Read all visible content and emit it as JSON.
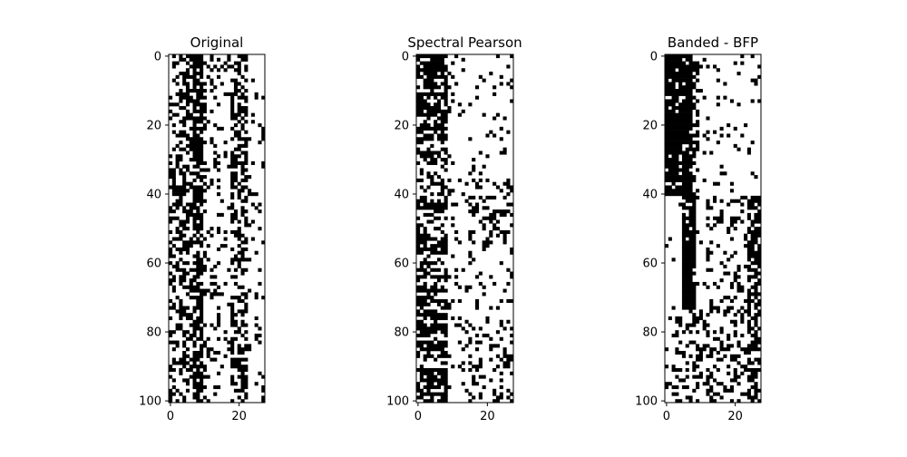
{
  "chart_data": [
    {
      "type": "heatmap",
      "title": "Original",
      "rows": 101,
      "cols": 28,
      "x_ticks": [
        0,
        20
      ],
      "y_ticks": [
        0,
        20,
        40,
        60,
        80,
        100
      ],
      "colormap": [
        "#ffffff",
        "#000000"
      ],
      "pattern": "original"
    },
    {
      "type": "heatmap",
      "title": "Spectral Pearson",
      "rows": 101,
      "cols": 28,
      "x_ticks": [
        0,
        20
      ],
      "y_ticks": [
        0,
        20,
        40,
        60,
        80,
        100
      ],
      "colormap": [
        "#ffffff",
        "#000000"
      ],
      "pattern": "spectral"
    },
    {
      "type": "heatmap",
      "title": "Banded - BFP",
      "rows": 101,
      "cols": 28,
      "x_ticks": [
        0,
        20
      ],
      "y_ticks": [
        0,
        20,
        40,
        60,
        80,
        100
      ],
      "colormap": [
        "#ffffff",
        "#000000"
      ],
      "pattern": "banded"
    }
  ]
}
